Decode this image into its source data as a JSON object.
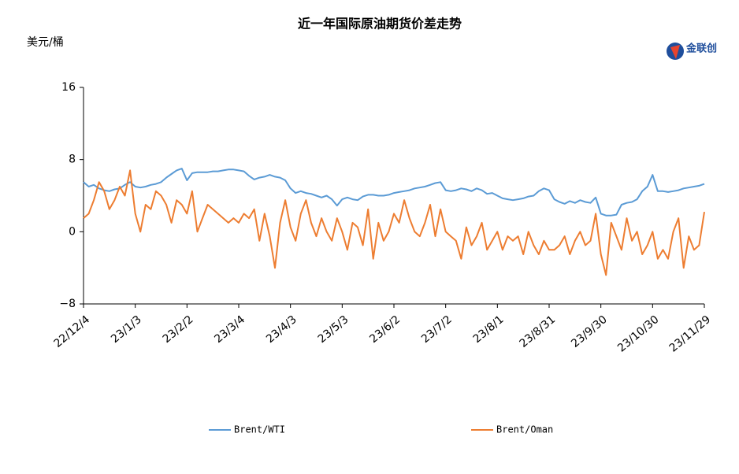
{
  "chart_data": {
    "type": "line",
    "title": "近一年国际原油期货价差走势",
    "y_label": "美元/桶",
    "logo_text": "金联创",
    "x": [
      0,
      3,
      6,
      9,
      12,
      15,
      18,
      21,
      24,
      27,
      30,
      33,
      36,
      39,
      42,
      45,
      48,
      51,
      54,
      57,
      60,
      63,
      66,
      69,
      72,
      75,
      78,
      81,
      84,
      87,
      90,
      93,
      96,
      99,
      102,
      105,
      108,
      111,
      114,
      117,
      120,
      123,
      126,
      129,
      132,
      135,
      138,
      141,
      144,
      147,
      150,
      153,
      156,
      159,
      162,
      165,
      168,
      171,
      174,
      177,
      180,
      183,
      186,
      189,
      192,
      195,
      198,
      201,
      204,
      207,
      210,
      213,
      216,
      219,
      222,
      225,
      228,
      231,
      234,
      237,
      240,
      243,
      246,
      249,
      252,
      255,
      258,
      261,
      264,
      267,
      270,
      273,
      276,
      279,
      282,
      285,
      288,
      291,
      294,
      297,
      300,
      303,
      306,
      309,
      312,
      315,
      318,
      321,
      324,
      327,
      330,
      333,
      336,
      339,
      342,
      345,
      348,
      351,
      354,
      357,
      360
    ],
    "series": [
      {
        "name": "Brent/WTI",
        "color": "#5b9bd5",
        "values": [
          5.5,
          5.0,
          5.2,
          4.8,
          4.6,
          4.5,
          4.7,
          4.8,
          5.2,
          5.5,
          5.0,
          4.9,
          5.0,
          5.2,
          5.3,
          5.5,
          6.0,
          6.4,
          6.8,
          7.0,
          5.7,
          6.5,
          6.6,
          6.6,
          6.6,
          6.7,
          6.7,
          6.8,
          6.9,
          6.9,
          6.8,
          6.7,
          6.2,
          5.8,
          6.0,
          6.1,
          6.3,
          6.1,
          6.0,
          5.7,
          4.8,
          4.3,
          4.5,
          4.3,
          4.2,
          4.0,
          3.8,
          4.0,
          3.6,
          2.9,
          3.6,
          3.8,
          3.6,
          3.5,
          3.9,
          4.1,
          4.1,
          4.0,
          4.0,
          4.1,
          4.3,
          4.4,
          4.5,
          4.6,
          4.8,
          4.9,
          5.0,
          5.2,
          5.4,
          5.5,
          4.6,
          4.5,
          4.6,
          4.8,
          4.7,
          4.5,
          4.8,
          4.6,
          4.2,
          4.3,
          4.0,
          3.7,
          3.6,
          3.5,
          3.6,
          3.7,
          3.9,
          4.0,
          4.5,
          4.8,
          4.6,
          3.6,
          3.3,
          3.1,
          3.4,
          3.2,
          3.5,
          3.3,
          3.2,
          3.8,
          2.0,
          1.8,
          1.8,
          1.9,
          3.0,
          3.2,
          3.3,
          3.6,
          4.5,
          5.0,
          6.3,
          4.5,
          4.5,
          4.4,
          4.5,
          4.6,
          4.8,
          4.9,
          5.0,
          5.1,
          5.3
        ]
      },
      {
        "name": "Brent/Oman",
        "color": "#ed7d31",
        "values": [
          1.5,
          2.0,
          3.5,
          5.5,
          4.5,
          2.5,
          3.5,
          5.0,
          4.0,
          6.8,
          2.0,
          0.0,
          3.0,
          2.5,
          4.5,
          4.0,
          3.0,
          1.0,
          3.5,
          3.0,
          2.0,
          4.5,
          0.0,
          1.5,
          3.0,
          2.5,
          2.0,
          1.5,
          1.0,
          1.5,
          1.0,
          2.0,
          1.5,
          2.5,
          -1.0,
          2.0,
          -0.5,
          -4.0,
          1.0,
          3.5,
          0.5,
          -1.0,
          2.0,
          3.5,
          1.0,
          -0.5,
          1.5,
          0.0,
          -1.0,
          1.5,
          0.0,
          -2.0,
          1.0,
          0.5,
          -1.5,
          2.5,
          -3.0,
          1.0,
          -1.0,
          0.0,
          2.0,
          1.0,
          3.5,
          1.5,
          0.0,
          -0.5,
          1.0,
          3.0,
          -0.5,
          2.5,
          0.0,
          -0.5,
          -1.0,
          -3.0,
          0.5,
          -1.5,
          -0.5,
          1.0,
          -2.0,
          -1.0,
          0.0,
          -2.0,
          -0.5,
          -1.0,
          -0.5,
          -2.5,
          0.0,
          -1.5,
          -2.5,
          -1.0,
          -2.0,
          -2.0,
          -1.5,
          -0.5,
          -2.5,
          -1.0,
          0.0,
          -1.5,
          -1.0,
          2.0,
          -2.5,
          -4.8,
          1.0,
          -0.5,
          -2.0,
          1.5,
          -1.0,
          0.0,
          -2.5,
          -1.5,
          0.0,
          -3.0,
          -2.0,
          -3.0,
          0.0,
          1.5,
          -4.0,
          -0.5,
          -2.0,
          -1.5,
          2.2
        ]
      }
    ],
    "xlim": [
      0,
      360
    ],
    "xticks": [
      {
        "value": 0,
        "label": "22/12/4"
      },
      {
        "value": 30,
        "label": "23/1/3"
      },
      {
        "value": 60,
        "label": "23/2/2"
      },
      {
        "value": 90,
        "label": "23/3/4"
      },
      {
        "value": 120,
        "label": "23/4/3"
      },
      {
        "value": 150,
        "label": "23/5/3"
      },
      {
        "value": 180,
        "label": "23/6/2"
      },
      {
        "value": 210,
        "label": "23/7/2"
      },
      {
        "value": 240,
        "label": "23/8/1"
      },
      {
        "value": 270,
        "label": "23/8/31"
      },
      {
        "value": 300,
        "label": "23/9/30"
      },
      {
        "value": 330,
        "label": "23/10/30"
      },
      {
        "value": 360,
        "label": "23/11/29"
      }
    ],
    "ylim": [
      -8,
      16
    ],
    "yticks": [
      {
        "value": -8,
        "label": "−8"
      },
      0,
      8,
      16
    ]
  }
}
